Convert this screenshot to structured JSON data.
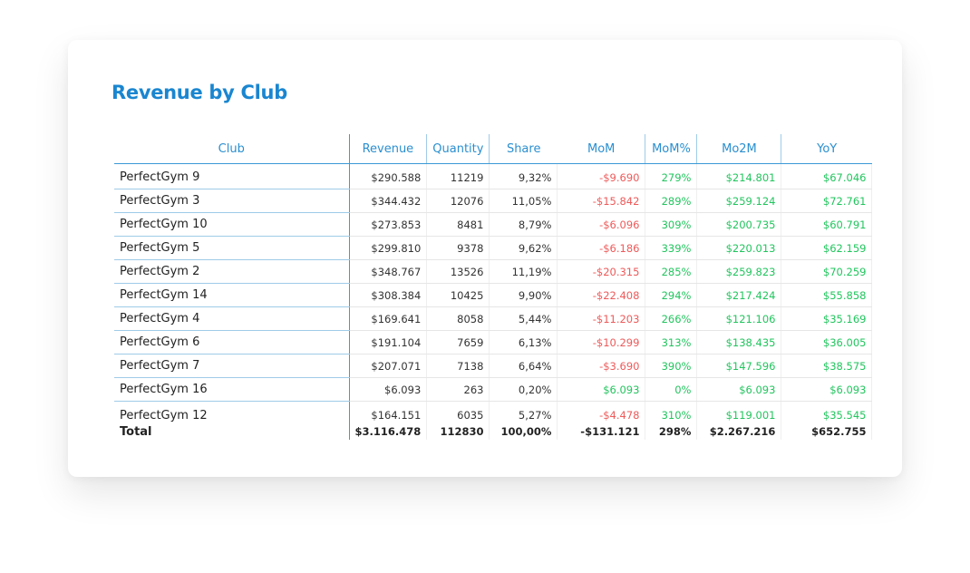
{
  "title": "Revenue by Club",
  "colors": {
    "accent": "#1a86d0",
    "negative": "#ee5a5a",
    "positive": "#22c55e"
  },
  "columns": [
    "Club",
    "Revenue",
    "Quantity",
    "Share",
    "MoM",
    "MoM%",
    "Mo2M",
    "YoY"
  ],
  "rows": [
    {
      "club": "PerfectGym 9",
      "revenue": "$290.588",
      "quantity": "11219",
      "share": "9,32%",
      "mom": "-$9.690",
      "mom_pct": "279%",
      "mo2m": "$214.801",
      "yoy": "$67.046"
    },
    {
      "club": "PerfectGym 3",
      "revenue": "$344.432",
      "quantity": "12076",
      "share": "11,05%",
      "mom": "-$15.842",
      "mom_pct": "289%",
      "mo2m": "$259.124",
      "yoy": "$72.761"
    },
    {
      "club": "PerfectGym 10",
      "revenue": "$273.853",
      "quantity": "8481",
      "share": "8,79%",
      "mom": "-$6.096",
      "mom_pct": "309%",
      "mo2m": "$200.735",
      "yoy": "$60.791"
    },
    {
      "club": "PerfectGym 5",
      "revenue": "$299.810",
      "quantity": "9378",
      "share": "9,62%",
      "mom": "-$6.186",
      "mom_pct": "339%",
      "mo2m": "$220.013",
      "yoy": "$62.159"
    },
    {
      "club": "PerfectGym 2",
      "revenue": "$348.767",
      "quantity": "13526",
      "share": "11,19%",
      "mom": "-$20.315",
      "mom_pct": "285%",
      "mo2m": "$259.823",
      "yoy": "$70.259"
    },
    {
      "club": "PerfectGym 14",
      "revenue": "$308.384",
      "quantity": "10425",
      "share": "9,90%",
      "mom": "-$22.408",
      "mom_pct": "294%",
      "mo2m": "$217.424",
      "yoy": "$55.858"
    },
    {
      "club": "PerfectGym 4",
      "revenue": "$169.641",
      "quantity": "8058",
      "share": "5,44%",
      "mom": "-$11.203",
      "mom_pct": "266%",
      "mo2m": "$121.106",
      "yoy": "$35.169"
    },
    {
      "club": "PerfectGym 6",
      "revenue": "$191.104",
      "quantity": "7659",
      "share": "6,13%",
      "mom": "-$10.299",
      "mom_pct": "313%",
      "mo2m": "$138.435",
      "yoy": "$36.005"
    },
    {
      "club": "PerfectGym 7",
      "revenue": "$207.071",
      "quantity": "7138",
      "share": "6,64%",
      "mom": "-$3.690",
      "mom_pct": "390%",
      "mo2m": "$147.596",
      "yoy": "$38.575"
    },
    {
      "club": "PerfectGym 16",
      "revenue": "$6.093",
      "quantity": "263",
      "share": "0,20%",
      "mom": "$6.093",
      "mom_pct": "0%",
      "mo2m": "$6.093",
      "yoy": "$6.093"
    },
    {
      "club": "PerfectGym 12",
      "revenue": "$164.151",
      "quantity": "6035",
      "share": "5,27%",
      "mom": "-$4.478",
      "mom_pct": "310%",
      "mo2m": "$119.001",
      "yoy": "$35.545"
    }
  ],
  "total": {
    "club": "Total",
    "revenue": "$3.116.478",
    "quantity": "112830",
    "share": "100,00%",
    "mom": "-$131.121",
    "mom_pct": "298%",
    "mo2m": "$2.267.216",
    "yoy": "$652.755"
  }
}
